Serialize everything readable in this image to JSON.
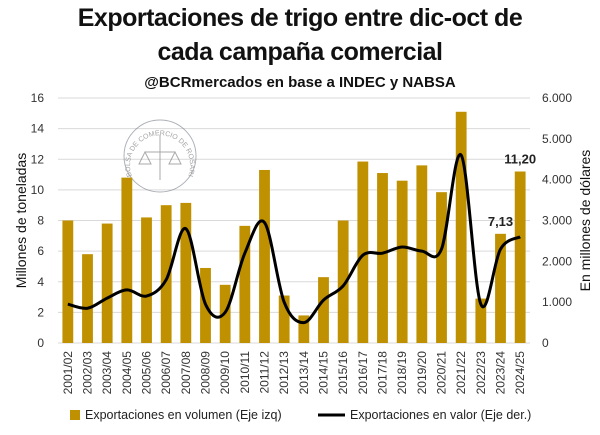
{
  "chart_data": {
    "type": "bar+line",
    "title_line1": "Exportaciones de trigo entre dic-oct de",
    "title_line2": "cada campaña comercial",
    "subtitle": "@BCRmercados en base a INDEC y NABSA",
    "watermark": "BOLSA DE COMERCIO DE ROSARIO",
    "ylabel_left": "Millones de toneladas",
    "ylabel_right": "En millones de dólares",
    "ylim_left": [
      0,
      16
    ],
    "ylim_right": [
      0,
      6000
    ],
    "yticks_left": [
      "0",
      "2",
      "4",
      "6",
      "8",
      "10",
      "12",
      "14",
      "16"
    ],
    "yticks_right": [
      "0",
      "1.000",
      "2.000",
      "3.000",
      "4.000",
      "5.000",
      "6.000"
    ],
    "grid": true,
    "legend_position": "bottom",
    "categories": [
      "2001/02",
      "2002/03",
      "2003/04",
      "2004/05",
      "2005/06",
      "2006/07",
      "2007/08",
      "2008/09",
      "2009/10",
      "2010/11",
      "2011/12",
      "2012/13",
      "2013/14",
      "2014/15",
      "2015/16",
      "2016/17",
      "2017/18",
      "2018/19",
      "2019/20",
      "2020/21",
      "2021/22",
      "2022/23",
      "2023/24",
      "2024/25"
    ],
    "series": [
      {
        "name": "Exportaciones en volumen (Eje izq)",
        "type": "bar",
        "axis": "left",
        "color": "#BF9000",
        "values": [
          8.0,
          5.8,
          7.8,
          10.8,
          8.2,
          9.0,
          9.15,
          4.9,
          3.8,
          7.65,
          11.3,
          3.1,
          1.8,
          4.3,
          8.0,
          11.85,
          11.1,
          10.6,
          11.6,
          9.85,
          15.1,
          2.9,
          7.13,
          11.2
        ]
      },
      {
        "name": "Exportaciones en valor (Eje der.)",
        "type": "line",
        "axis": "right",
        "color": "#000000",
        "values": [
          950,
          850,
          1100,
          1300,
          1150,
          1550,
          2800,
          950,
          750,
          2200,
          2950,
          1000,
          500,
          1050,
          1400,
          2150,
          2200,
          2350,
          2250,
          2300,
          4600,
          950,
          2300,
          2600
        ]
      }
    ],
    "data_labels": [
      {
        "category": "2023/24",
        "text": "7,13"
      },
      {
        "category": "2024/25",
        "text": "11,20"
      }
    ]
  }
}
